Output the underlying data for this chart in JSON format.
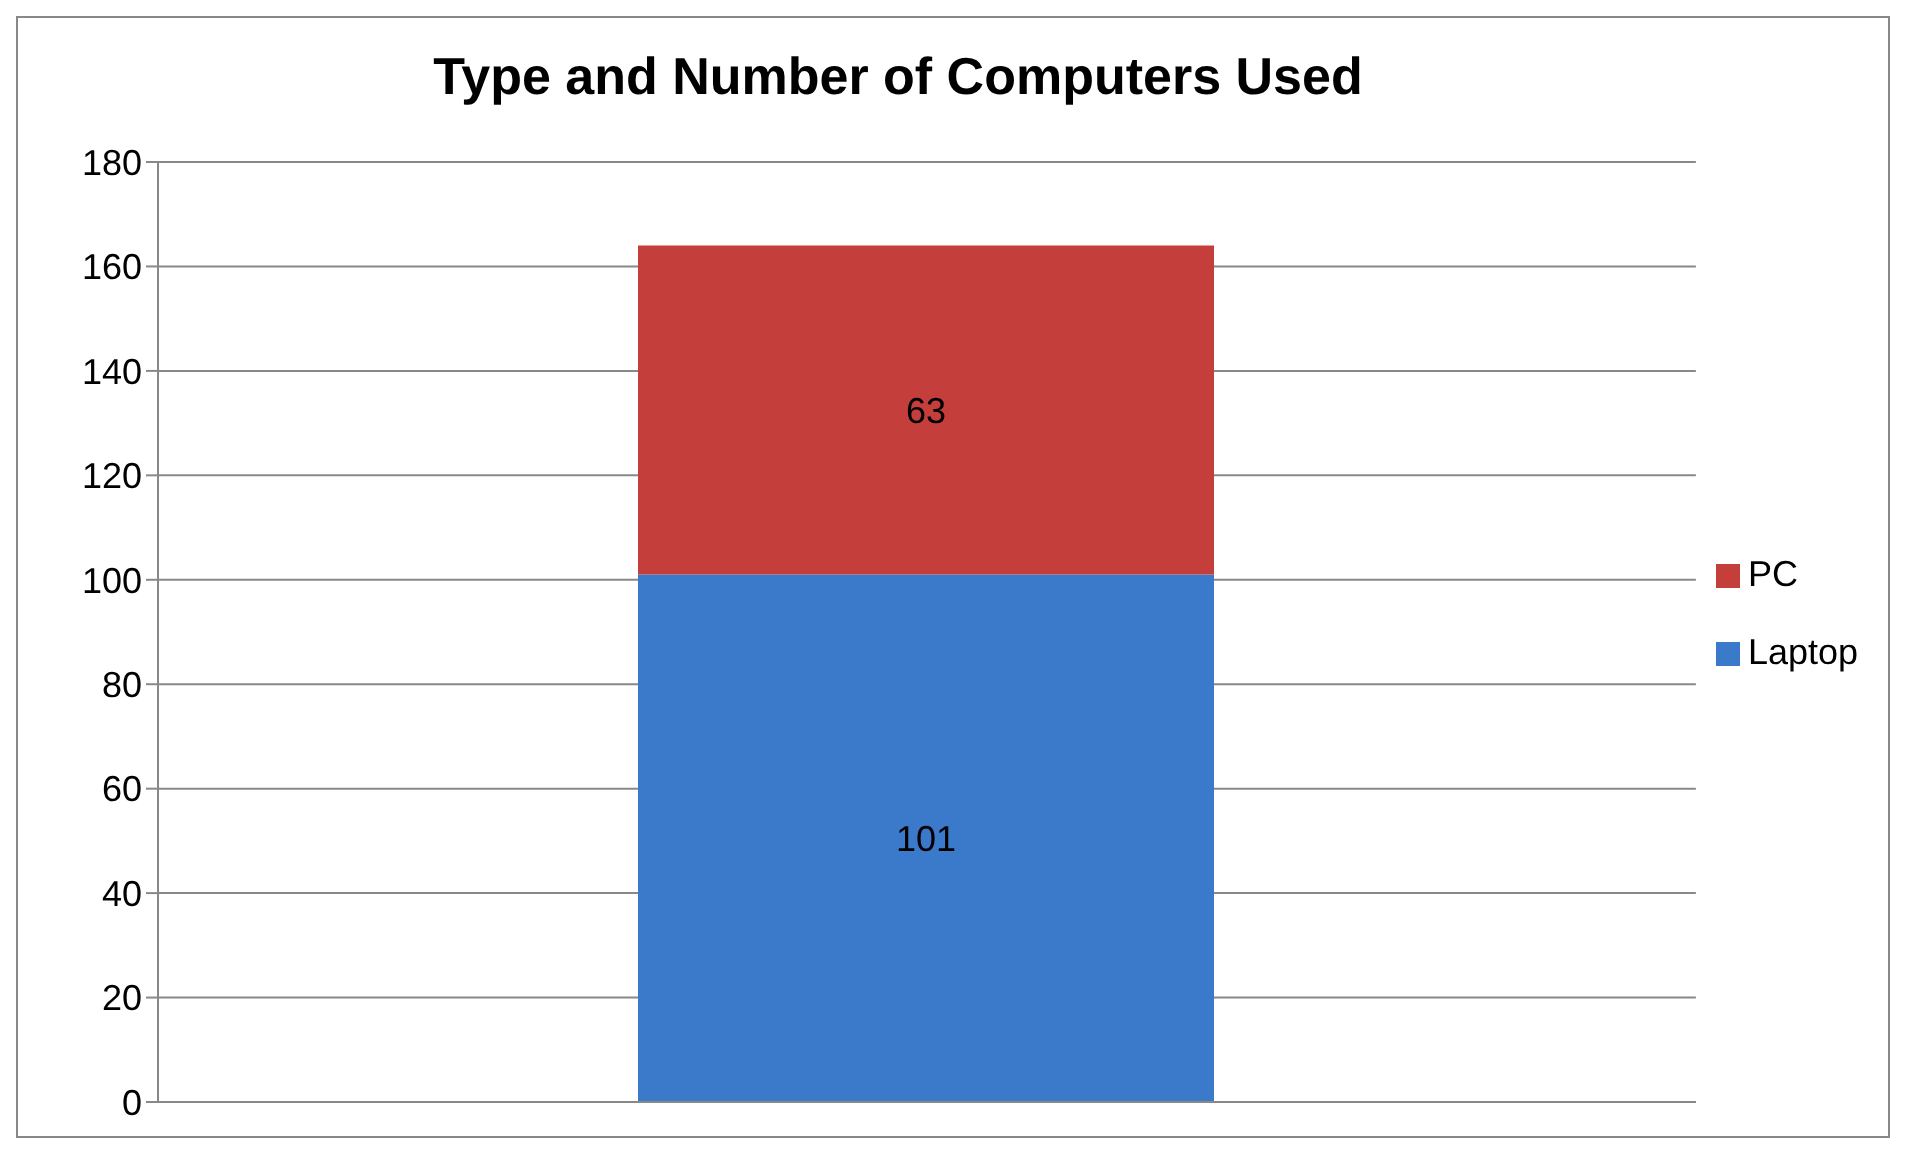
{
  "chart_data": {
    "type": "bar",
    "title": "Type and Number of Computers Used",
    "categories": [
      null
    ],
    "stacked": true,
    "series": [
      {
        "name": "Laptop",
        "color": "#3b7acb",
        "values": [
          101
        ]
      },
      {
        "name": "PC",
        "color": "#c43f3c",
        "values": [
          63
        ]
      }
    ],
    "ylim": [
      0,
      180
    ],
    "yticks": [
      0,
      20,
      40,
      60,
      80,
      100,
      120,
      140,
      160,
      180
    ],
    "grid": "y",
    "legend": "right",
    "data_labels": true
  }
}
